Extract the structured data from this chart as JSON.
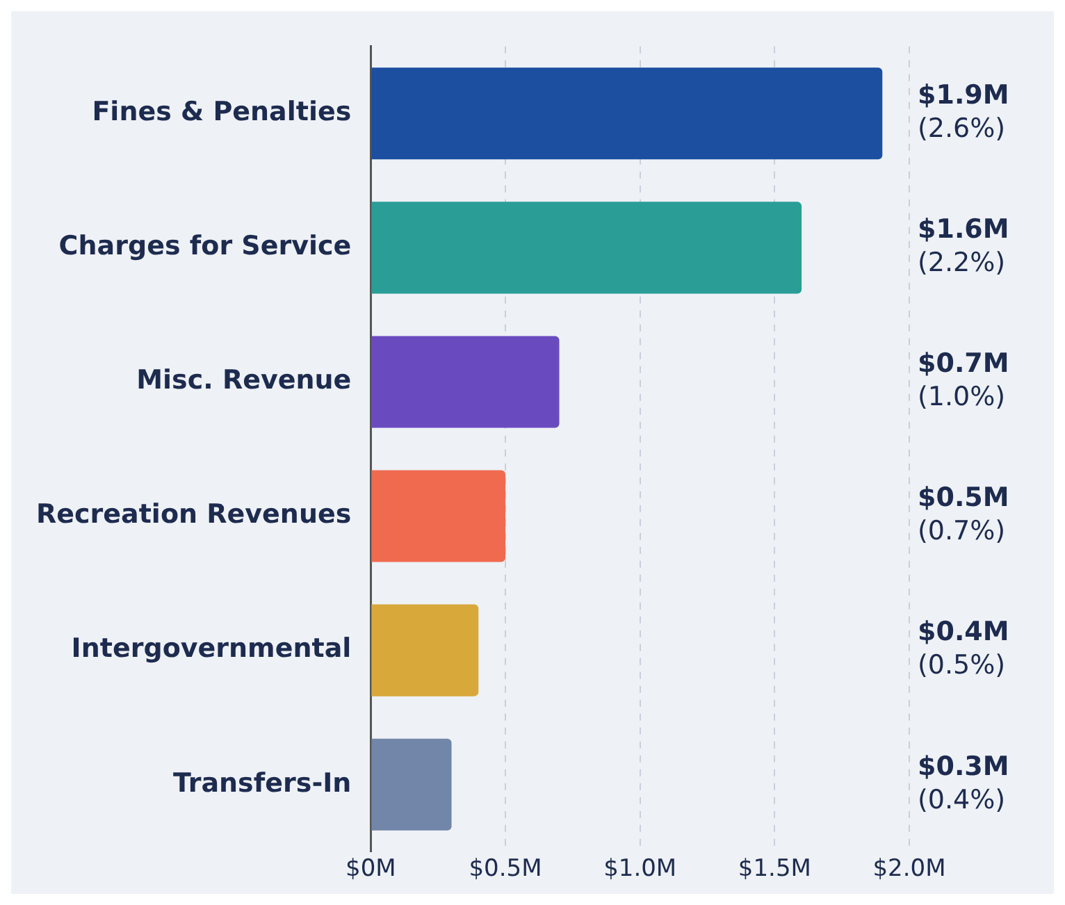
{
  "chart_data": {
    "type": "bar",
    "orientation": "horizontal",
    "categories": [
      "Fines & Penalties",
      "Charges for Service",
      "Misc. Revenue",
      "Recreation Revenues",
      "Intergovernmental",
      "Transfers-In"
    ],
    "values": [
      1.9,
      1.6,
      0.7,
      0.5,
      0.4,
      0.3
    ],
    "colors": [
      "#1c4fa0",
      "#2a9d97",
      "#6a4bbf",
      "#f06a4f",
      "#d9a83a",
      "#7186a8"
    ],
    "value_labels": [
      "$1.9M",
      "$1.6M",
      "$0.7M",
      "$0.5M",
      "$0.4M",
      "$0.3M"
    ],
    "annotations": [
      "(2.6%)",
      "(2.2%)",
      "(1.0%)",
      "(0.7%)",
      "(0.5%)",
      "(0.4%)"
    ],
    "xlim": [
      0,
      2
    ],
    "xticks": [
      {
        "value": 0,
        "label": "$0M"
      },
      {
        "value": 0.5,
        "label": "$0.5M"
      },
      {
        "value": 1,
        "label": "$1.0M"
      },
      {
        "value": 1.5,
        "label": "$1.5M"
      },
      {
        "value": 2,
        "label": "$2.0M"
      }
    ],
    "grid": "x"
  }
}
